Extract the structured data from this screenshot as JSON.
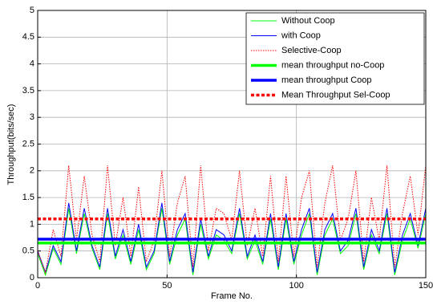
{
  "chart_data": {
    "type": "line",
    "xlabel": "Frame No.",
    "ylabel": "Throughput(bits/sec)",
    "xlim": [
      0,
      150
    ],
    "ylim": [
      0,
      5
    ],
    "xticks": [
      0,
      50,
      100,
      150
    ],
    "yticks": [
      0,
      0.5,
      1,
      1.5,
      2,
      2.5,
      3,
      3.5,
      4,
      4.5,
      5
    ],
    "grid": true,
    "legend": "northeast",
    "series": [
      {
        "name": "Without Coop",
        "color": "#00ff00",
        "style": "solid",
        "width": 1,
        "x": [
          0,
          3,
          6,
          9,
          12,
          15,
          18,
          21,
          24,
          27,
          30,
          33,
          36,
          39,
          42,
          45,
          48,
          51,
          54,
          57,
          60,
          63,
          66,
          69,
          72,
          75,
          78,
          81,
          84,
          87,
          90,
          93,
          96,
          99,
          102,
          105,
          108,
          111,
          114,
          117,
          120,
          123,
          126,
          129,
          132,
          135,
          138,
          141,
          144,
          147,
          150
        ],
        "values": [
          0.45,
          0.05,
          0.55,
          0.25,
          1.3,
          0.45,
          1.2,
          0.55,
          0.15,
          1.2,
          0.35,
          0.8,
          0.25,
          0.9,
          0.15,
          0.45,
          1.3,
          0.25,
          0.8,
          1.1,
          0.05,
          1.0,
          0.35,
          0.8,
          0.7,
          0.45,
          1.2,
          0.35,
          0.7,
          0.25,
          1.1,
          0.15,
          1.1,
          0.25,
          0.8,
          1.2,
          0.05,
          0.8,
          1.1,
          0.45,
          0.6,
          1.2,
          0.15,
          0.8,
          0.45,
          1.2,
          0.05,
          0.7,
          1.1,
          0.55,
          1.2
        ]
      },
      {
        "name": "with Coop",
        "color": "#0000ff",
        "style": "solid",
        "width": 1,
        "x": [
          0,
          3,
          6,
          9,
          12,
          15,
          18,
          21,
          24,
          27,
          30,
          33,
          36,
          39,
          42,
          45,
          48,
          51,
          54,
          57,
          60,
          63,
          66,
          69,
          72,
          75,
          78,
          81,
          84,
          87,
          90,
          93,
          96,
          99,
          102,
          105,
          108,
          111,
          114,
          117,
          120,
          123,
          126,
          129,
          132,
          135,
          138,
          141,
          144,
          147,
          150
        ],
        "values": [
          0.5,
          0.1,
          0.6,
          0.3,
          1.4,
          0.5,
          1.3,
          0.6,
          0.2,
          1.3,
          0.4,
          0.9,
          0.3,
          1.0,
          0.2,
          0.5,
          1.4,
          0.3,
          0.9,
          1.2,
          0.1,
          1.1,
          0.4,
          0.9,
          0.8,
          0.5,
          1.3,
          0.4,
          0.8,
          0.3,
          1.2,
          0.2,
          1.2,
          0.3,
          0.9,
          1.3,
          0.1,
          0.9,
          1.2,
          0.5,
          0.7,
          1.3,
          0.2,
          0.9,
          0.5,
          1.3,
          0.1,
          0.8,
          1.2,
          0.6,
          1.3
        ]
      },
      {
        "name": "Selective-Coop",
        "color": "#ff0000",
        "style": "dotted",
        "width": 1,
        "x": [
          0,
          3,
          6,
          9,
          12,
          15,
          18,
          21,
          24,
          27,
          30,
          33,
          36,
          39,
          42,
          45,
          48,
          51,
          54,
          57,
          60,
          63,
          66,
          69,
          72,
          75,
          78,
          81,
          84,
          87,
          90,
          93,
          96,
          99,
          102,
          105,
          108,
          111,
          114,
          117,
          120,
          123,
          126,
          129,
          132,
          135,
          138,
          141,
          144,
          147,
          150
        ],
        "values": [
          0.5,
          0.1,
          0.9,
          0.4,
          2.1,
          0.7,
          1.9,
          0.8,
          0.3,
          2.1,
          0.6,
          1.5,
          0.4,
          1.7,
          0.3,
          0.7,
          2.0,
          0.4,
          1.4,
          1.9,
          0.2,
          2.1,
          0.5,
          1.3,
          1.2,
          0.7,
          2.0,
          0.6,
          1.3,
          0.4,
          1.9,
          0.3,
          1.9,
          0.4,
          1.5,
          2.0,
          0.2,
          1.4,
          2.1,
          0.7,
          1.1,
          2.0,
          0.3,
          1.5,
          0.7,
          2.1,
          0.2,
          1.2,
          1.9,
          0.8,
          2.1
        ]
      },
      {
        "name": "mean throughput no-Coop",
        "color": "#00ff00",
        "style": "solid",
        "width": 3.5,
        "x": [
          0,
          150
        ],
        "values": [
          0.65,
          0.65
        ]
      },
      {
        "name": "mean throughput Coop",
        "color": "#0000ff",
        "style": "solid",
        "width": 3.5,
        "x": [
          0,
          150
        ],
        "values": [
          0.72,
          0.72
        ]
      },
      {
        "name": "Mean Throughput Sel-Coop",
        "color": "#ff0000",
        "style": "dashed",
        "width": 3.5,
        "x": [
          0,
          150
        ],
        "values": [
          1.1,
          1.1
        ]
      }
    ]
  }
}
